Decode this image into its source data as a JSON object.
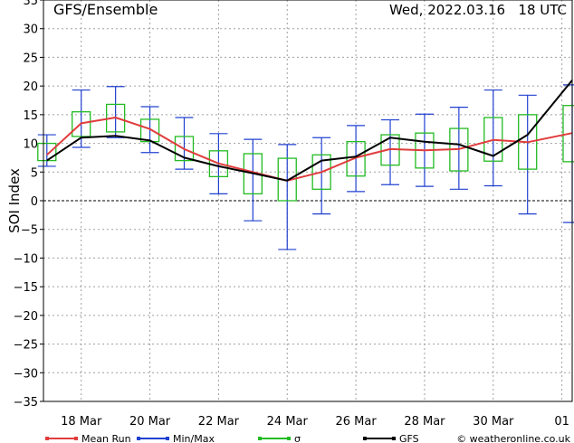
{
  "header": {
    "left_title": "GFS/Ensemble",
    "right_title": "Wed, 2022.03.16   18 UTC"
  },
  "footer": {
    "credit": "© weatheronline.co.uk"
  },
  "colors": {
    "mean": "#e03c3c",
    "minmax": "#2040d0",
    "sigma": "#22bb22",
    "gfs": "#000000",
    "grid": "#a0a0a0"
  },
  "chart_data": {
    "type": "line",
    "ylabel": "SOI Index",
    "ylim": [
      -35,
      35
    ],
    "yticks": [
      35,
      30,
      25,
      20,
      15,
      10,
      5,
      0,
      -5,
      -10,
      -15,
      -20,
      -25,
      -30,
      -35
    ],
    "xticks": [
      {
        "x": 1,
        "label": "18 Mar"
      },
      {
        "x": 3,
        "label": "20 Mar"
      },
      {
        "x": 5,
        "label": "22 Mar"
      },
      {
        "x": 7,
        "label": "24 Mar"
      },
      {
        "x": 9,
        "label": "26 Mar"
      },
      {
        "x": 11,
        "label": "28 Mar"
      },
      {
        "x": 13,
        "label": "30 Mar"
      },
      {
        "x": 15,
        "label": "01"
      }
    ],
    "xlim": [
      -0.1,
      15.3
    ],
    "x": [
      0,
      1,
      2,
      3,
      4,
      5,
      6,
      7,
      8,
      9,
      10,
      11,
      12,
      13,
      14,
      15.3
    ],
    "legend": [
      {
        "key": "mean",
        "label": "Mean Run"
      },
      {
        "key": "minmax",
        "label": "Min/Max"
      },
      {
        "key": "sigma",
        "label": "σ"
      },
      {
        "key": "gfs",
        "label": "GFS"
      }
    ],
    "mean_run": [
      8,
      13.5,
      14.5,
      12.5,
      9,
      6.5,
      5,
      3.5,
      5,
      7.5,
      9,
      8.8,
      9,
      10.6,
      10.2,
      11.8
    ],
    "gfs": [
      7,
      11,
      11.3,
      10.5,
      7.5,
      6,
      4.8,
      3.5,
      7,
      7.7,
      11,
      10.3,
      9.8,
      7.8,
      11.5,
      21
    ],
    "minmax": [
      {
        "min": 6,
        "max": 11.5
      },
      {
        "min": 9.3,
        "max": 19.3
      },
      {
        "min": 11,
        "max": 19.9
      },
      {
        "min": 8.4,
        "max": 16.4
      },
      {
        "min": 5.5,
        "max": 14.5
      },
      {
        "min": 1.2,
        "max": 11.7
      },
      {
        "min": -3.5,
        "max": 10.7
      },
      {
        "min": -8.5,
        "max": 9.8
      },
      {
        "min": -2.3,
        "max": 11
      },
      {
        "min": 1.6,
        "max": 13.1
      },
      {
        "min": 2.8,
        "max": 14.1
      },
      {
        "min": 2.5,
        "max": 15.1
      },
      {
        "min": 2,
        "max": 16.3
      },
      {
        "min": 2.6,
        "max": 19.3
      },
      {
        "min": -2.3,
        "max": 18.4
      },
      {
        "min": -3.8,
        "max": 20.2
      }
    ],
    "sigma": [
      {
        "low": 7,
        "high": 10
      },
      {
        "low": 11.2,
        "high": 15.5
      },
      {
        "low": 12,
        "high": 16.8
      },
      {
        "low": 10.3,
        "high": 14.2
      },
      {
        "low": 7,
        "high": 11.2
      },
      {
        "low": 4.2,
        "high": 8.7
      },
      {
        "low": 1.2,
        "high": 8.2
      },
      {
        "low": 0,
        "high": 7.4
      },
      {
        "low": 2,
        "high": 8
      },
      {
        "low": 4.3,
        "high": 10.3
      },
      {
        "low": 6.2,
        "high": 11.5
      },
      {
        "low": 5.7,
        "high": 11.8
      },
      {
        "low": 5.2,
        "high": 12.6
      },
      {
        "low": 6.9,
        "high": 14.5
      },
      {
        "low": 5.5,
        "high": 15
      },
      {
        "low": 6.8,
        "high": 16.6
      }
    ]
  }
}
